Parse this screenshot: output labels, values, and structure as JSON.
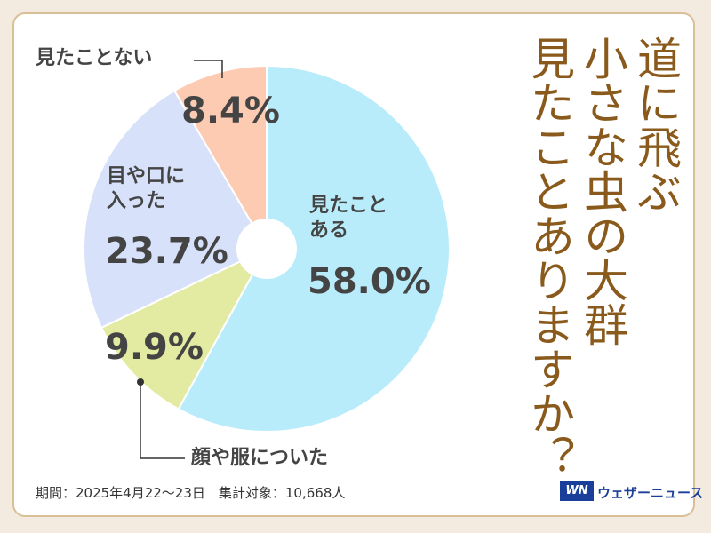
{
  "chart_data": {
    "type": "pie",
    "title": "道に飛ぶ\n小さな虫の大群\n見たことありますか？",
    "categories": [
      "見たこと\nある",
      "顔や服についた",
      "目や口に\n入った",
      "見たことない"
    ],
    "values": [
      58.0,
      9.9,
      23.7,
      8.4
    ],
    "value_labels": [
      "58.0%",
      "9.9%",
      "23.7%",
      "8.4%"
    ],
    "colors": [
      "#b9ecfa",
      "#e3eba2",
      "#d7e1fa",
      "#fdcab2"
    ],
    "note": "期間：2025年4月22〜23日　集計対象：10,668人",
    "logo": "ウェザーニュース"
  }
}
